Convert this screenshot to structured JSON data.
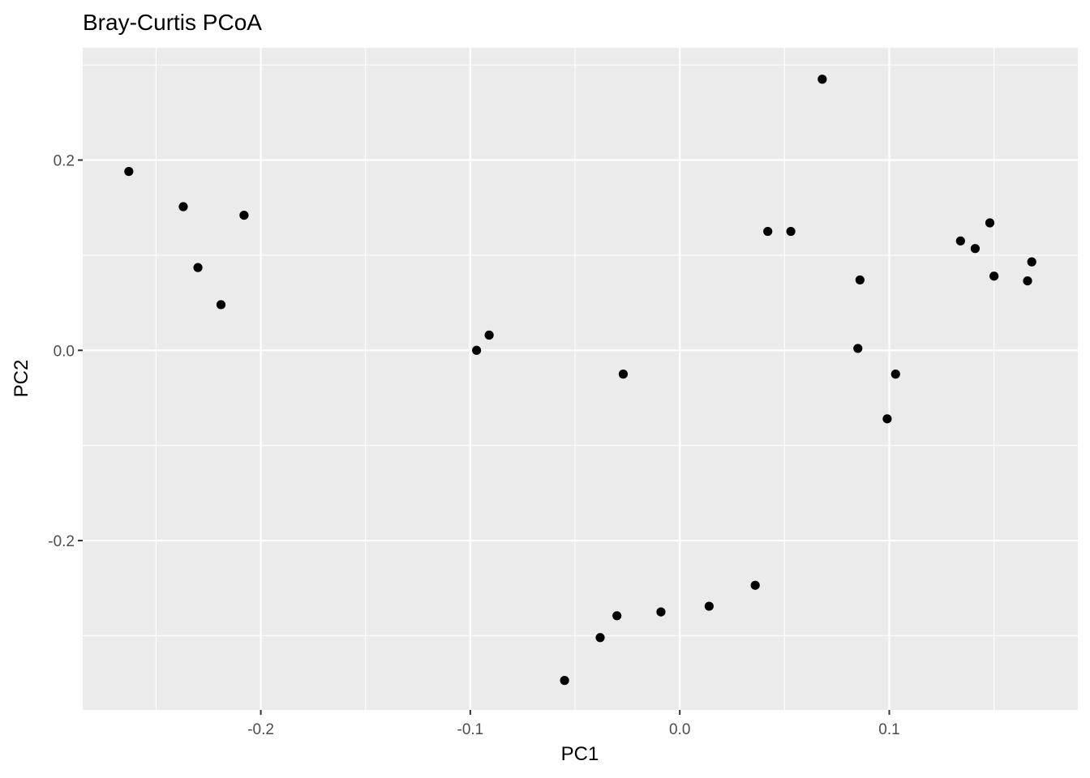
{
  "chart_data": {
    "type": "scatter",
    "title": "Bray-Curtis PCoA",
    "xlabel": "PC1",
    "ylabel": "PC2",
    "xlim": [
      -0.285,
      0.19
    ],
    "ylim": [
      -0.378,
      0.318
    ],
    "x_ticks": [
      -0.2,
      -0.1,
      0.0,
      0.1
    ],
    "x_tick_labels": [
      "-0.2",
      "-0.1",
      "0.0",
      "0.1"
    ],
    "y_ticks": [
      -0.2,
      0.0,
      0.2
    ],
    "y_tick_labels": [
      "-0.2",
      "0.0",
      "0.2"
    ],
    "grid": true,
    "legend": "none",
    "colors": {
      "panel": "#ebebeb",
      "grid": "#ffffff",
      "point": "#000000"
    },
    "points": [
      {
        "x": -0.263,
        "y": 0.188
      },
      {
        "x": -0.237,
        "y": 0.151
      },
      {
        "x": -0.208,
        "y": 0.142
      },
      {
        "x": -0.23,
        "y": 0.087
      },
      {
        "x": -0.219,
        "y": 0.048
      },
      {
        "x": -0.097,
        "y": 0.0
      },
      {
        "x": -0.091,
        "y": 0.016
      },
      {
        "x": -0.027,
        "y": -0.025
      },
      {
        "x": -0.055,
        "y": -0.347
      },
      {
        "x": -0.038,
        "y": -0.302
      },
      {
        "x": -0.03,
        "y": -0.279
      },
      {
        "x": -0.009,
        "y": -0.275
      },
      {
        "x": 0.014,
        "y": -0.269
      },
      {
        "x": 0.036,
        "y": -0.247
      },
      {
        "x": 0.042,
        "y": 0.125
      },
      {
        "x": 0.053,
        "y": 0.125
      },
      {
        "x": 0.068,
        "y": 0.285
      },
      {
        "x": 0.086,
        "y": 0.074
      },
      {
        "x": 0.085,
        "y": 0.002
      },
      {
        "x": 0.103,
        "y": -0.025
      },
      {
        "x": 0.099,
        "y": -0.072
      },
      {
        "x": 0.134,
        "y": 0.115
      },
      {
        "x": 0.141,
        "y": 0.107
      },
      {
        "x": 0.148,
        "y": 0.134
      },
      {
        "x": 0.15,
        "y": 0.078
      },
      {
        "x": 0.166,
        "y": 0.073
      },
      {
        "x": 0.168,
        "y": 0.093
      }
    ]
  }
}
